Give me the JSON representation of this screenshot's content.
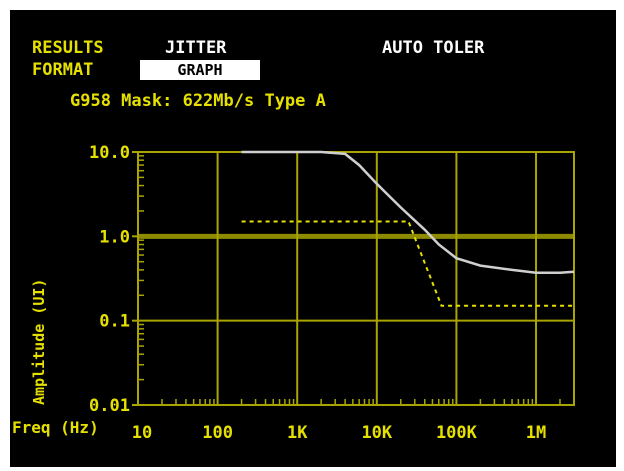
{
  "header": {
    "results_label": "RESULTS",
    "mode_value": "JITTER",
    "auto_label": "AUTO TOLER",
    "format_label": "FORMAT",
    "format_value": "GRAPH",
    "mask_line": "G958 Mask: 622Mb/s  Type A"
  },
  "colors": {
    "background": "#000000",
    "text_yellow": "#e6e000",
    "grid": "#a8a400",
    "result_curve": "#cfcfcf",
    "mask_line": "#e6e000"
  },
  "chart_data": {
    "type": "line",
    "title": "",
    "xlabel": "Freq (Hz)",
    "ylabel": "Amplitude (UI)",
    "xscale": "log",
    "yscale": "log",
    "xlim": [
      10,
      3000000
    ],
    "ylim": [
      0.01,
      10
    ],
    "x_tick_labels": [
      "10",
      "100",
      "1K",
      "10K",
      "100K",
      "1M"
    ],
    "x_tick_values": [
      10,
      100,
      1000,
      10000,
      100000,
      1000000
    ],
    "y_tick_labels": [
      "10.0",
      "1.0",
      "0.1",
      "0.01"
    ],
    "y_tick_values": [
      10,
      1,
      0.1,
      0.01
    ],
    "grid": true,
    "series": [
      {
        "style": "solid",
        "x": [
          200,
          500,
          1000,
          2000,
          4000,
          6000,
          10000,
          20000,
          40000,
          60000,
          100000,
          200000,
          500000,
          1000000,
          2000000,
          3000000
        ],
        "y": [
          10,
          10,
          10,
          10,
          9.5,
          7,
          4.2,
          2.2,
          1.2,
          0.8,
          0.55,
          0.45,
          0.4,
          0.37,
          0.37,
          0.38
        ]
      },
      {
        "style": "dashed",
        "x": [
          200,
          25000,
          65000,
          65000,
          3000000
        ],
        "y": [
          1.5,
          1.5,
          0.15,
          0.15,
          0.15
        ]
      }
    ]
  }
}
